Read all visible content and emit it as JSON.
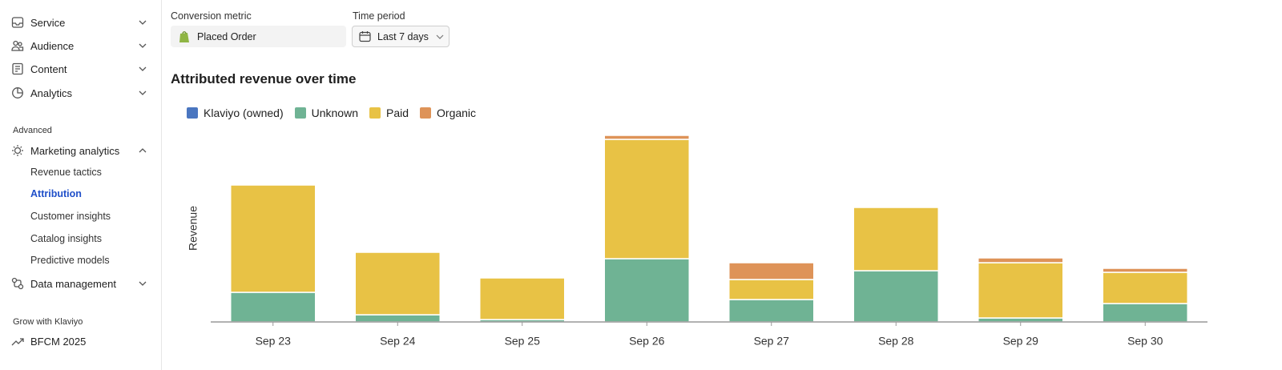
{
  "sidebar": {
    "main": [
      "Service",
      "Audience",
      "Content",
      "Analytics"
    ],
    "advanced_heading": "Advanced",
    "marketing": "Marketing analytics",
    "subitems": [
      "Revenue tactics",
      "Attribution",
      "Customer insights",
      "Catalog insights",
      "Predictive models"
    ],
    "data_management": "Data management",
    "grow_heading": "Grow with Klaviyo",
    "bfcm": "BFCM 2025"
  },
  "filters": {
    "metric_label": "Conversion metric",
    "metric_value": "Placed Order",
    "period_label": "Time period",
    "period_value": "Last 7 days"
  },
  "chart_data": {
    "type": "stacked_bar",
    "title": "Attributed revenue over time",
    "y_label": "Revenue",
    "categories": [
      "Sep 23",
      "Sep 24",
      "Sep 25",
      "Sep 26",
      "Sep 27",
      "Sep 28",
      "Sep 29",
      "Sep 30"
    ],
    "series": [
      {
        "name": "Klaviyo (owned)",
        "color": "#4a76c0",
        "values": [
          0,
          0,
          0,
          0,
          0,
          0,
          0,
          0
        ]
      },
      {
        "name": "Unknown",
        "color": "#6fb394",
        "values": [
          37,
          9,
          3,
          79,
          28,
          64,
          5,
          23
        ]
      },
      {
        "name": "Paid",
        "color": "#e8c245",
        "values": [
          134,
          78,
          52,
          149,
          25,
          79,
          69,
          39
        ]
      },
      {
        "name": "Organic",
        "color": "#de9358",
        "values": [
          0,
          0,
          0,
          5,
          21,
          0,
          6,
          5
        ]
      }
    ],
    "ylim": [
      0,
      240
    ]
  }
}
